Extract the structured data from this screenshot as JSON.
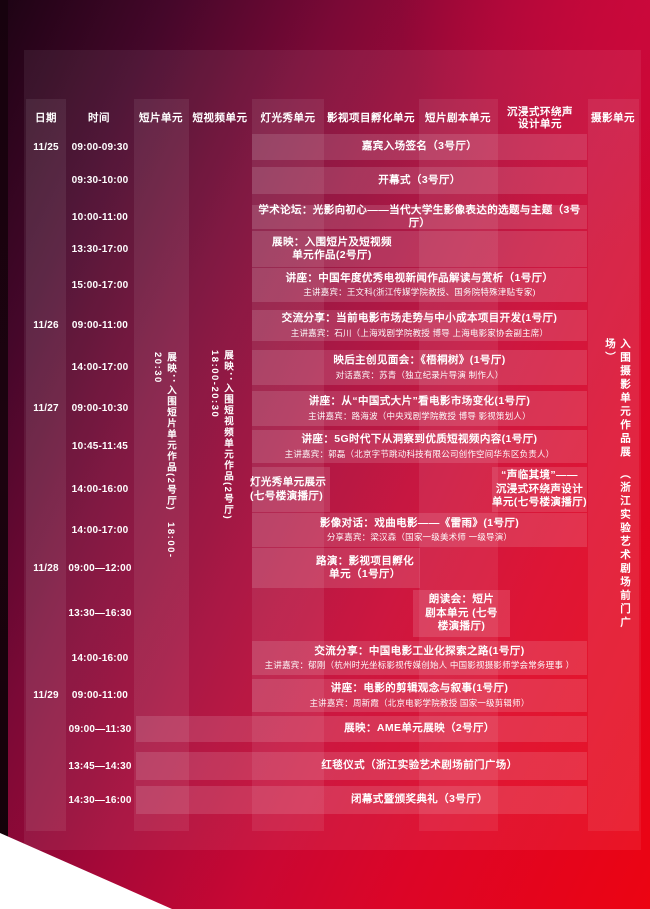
{
  "poster_colors": {
    "background_dark": "#1d0314",
    "background_red": "#ec0412",
    "crimson": "#cb0734",
    "text": "#ffffff"
  },
  "header": {
    "columns": [
      {
        "label": "日期"
      },
      {
        "label": "时间"
      },
      {
        "label": "短片单元"
      },
      {
        "label": "短视频单元"
      },
      {
        "label": "灯光秀单元"
      },
      {
        "label": "影视项目孵化单元"
      },
      {
        "label": "短片剧本单元"
      },
      {
        "label": "沉浸式环绕声\n设计单元"
      },
      {
        "label": "摄影单元"
      }
    ]
  },
  "rows": [
    {
      "date": "11/25",
      "time": "09:00-09:30",
      "events": [
        {
          "title": "嘉宾入场签名（3号厅）"
        }
      ]
    },
    {
      "time": "09:30-10:00",
      "events": [
        {
          "title": "开幕式（3号厅）"
        }
      ]
    },
    {
      "time": "10:00-11:00",
      "events": [
        {
          "title": "学术论坛：光影向初心——当代大学生影像表达的选题与主题（3号厅）"
        }
      ]
    },
    {
      "time": "13:30-17:00",
      "events": [
        {
          "title": "展映：入围短片及短视频\n单元作品(2号厅)"
        }
      ]
    },
    {
      "time": "15:00-17:00",
      "events": [
        {
          "title": "讲座：中国年度优秀电视新闻作品解读与赏析（1号厅）",
          "speaker": "主讲嘉宾：王文科(浙江传媒学院教授、国务院特殊津贴专家)"
        }
      ]
    },
    {
      "date": "11/26",
      "time": "09:00-11:00",
      "events": [
        {
          "title": "交流分享：当前电影市场走势与中小成本项目开发(1号厅)",
          "speaker": "主讲嘉宾：石川（上海戏剧学院教授 博导 上海电影家协会副主席）"
        }
      ]
    },
    {
      "time": "14:00-17:00",
      "events": [
        {
          "title": "映后主创见面会：《梧桐树》(1号厅)",
          "speaker": "对话嘉宾：苏青（独立纪录片导演 制作人）"
        }
      ]
    },
    {
      "date": "11/27",
      "time": "09:00-10:30",
      "events": [
        {
          "title": "讲座：从“中国式大片”看电影市场变化(1号厅)",
          "speaker": "主讲嘉宾：路海波（中央戏剧学院教授 博导 影视策划人）"
        }
      ]
    },
    {
      "time": "10:45-11:45",
      "events": [
        {
          "title": "讲座：5G时代下从洞察到优质短视频内容(1号厅)",
          "speaker": "主讲嘉宾：郭磊（北京字节跳动科技有限公司创作空间华东区负责人）"
        }
      ]
    },
    {
      "time": "14:00-16:00",
      "events": [
        {
          "title": "灯光秀单元展示\n(七号楼演播厅)"
        },
        {
          "title": "“声临其境”——\n沉浸式环绕声设计\n单元(七号楼演播厅)"
        }
      ]
    },
    {
      "time": "14:00-17:00",
      "events": [
        {
          "title": "影像对话：戏曲电影——《雷雨》(1号厅)",
          "speaker": "分享嘉宾：梁汉森（国家一级美术师 一级导演）"
        }
      ]
    },
    {
      "date": "11/28",
      "time": "09:00—12:00",
      "events": [
        {
          "title": "路演：影视项目孵化\n单元（1号厅）"
        }
      ]
    },
    {
      "time": "13:30—16:30",
      "events": [
        {
          "title": "朗读会：短片\n剧本单元 (七号\n楼演播厅)"
        }
      ]
    },
    {
      "time": "14:00-16:00",
      "events": [
        {
          "title": "交流分享：中国电影工业化探索之路(1号厅)",
          "speaker": "主讲嘉宾：郁刚（杭州时光坐标影视传媒创始人 中国影视摄影师学会常务理事 ）"
        }
      ]
    },
    {
      "date": "11/29",
      "time": "09:00-11:00",
      "events": [
        {
          "title": "讲座：电影的剪辑观念与叙事(1号厅)",
          "speaker": "主讲嘉宾：周新霞（北京电影学院教授 国家一级剪辑师）"
        }
      ]
    },
    {
      "time": "09:00—11:30",
      "events": [
        {
          "title": "展映：AME单元展映（2号厅）"
        }
      ]
    },
    {
      "time": "13:45—14:30",
      "events": [
        {
          "title": "红毯仪式（浙江实验艺术剧场前门广场）"
        }
      ]
    },
    {
      "time": "14:30—16:00",
      "events": [
        {
          "title": "闭幕式暨颁奖典礼（3号厅）"
        }
      ]
    }
  ],
  "vertical_notes": [
    {
      "column": "短片单元",
      "text": "展映：入围短片单元作品(2号厅)　18:00-20:30"
    },
    {
      "column": "短视频单元",
      "text": "展映：入围短视频单元作品(2号厅)　18:00-20:30"
    },
    {
      "column": "摄影单元",
      "text": "入围摄影单元作品展　（浙江实验艺术剧场前门广场）"
    }
  ]
}
